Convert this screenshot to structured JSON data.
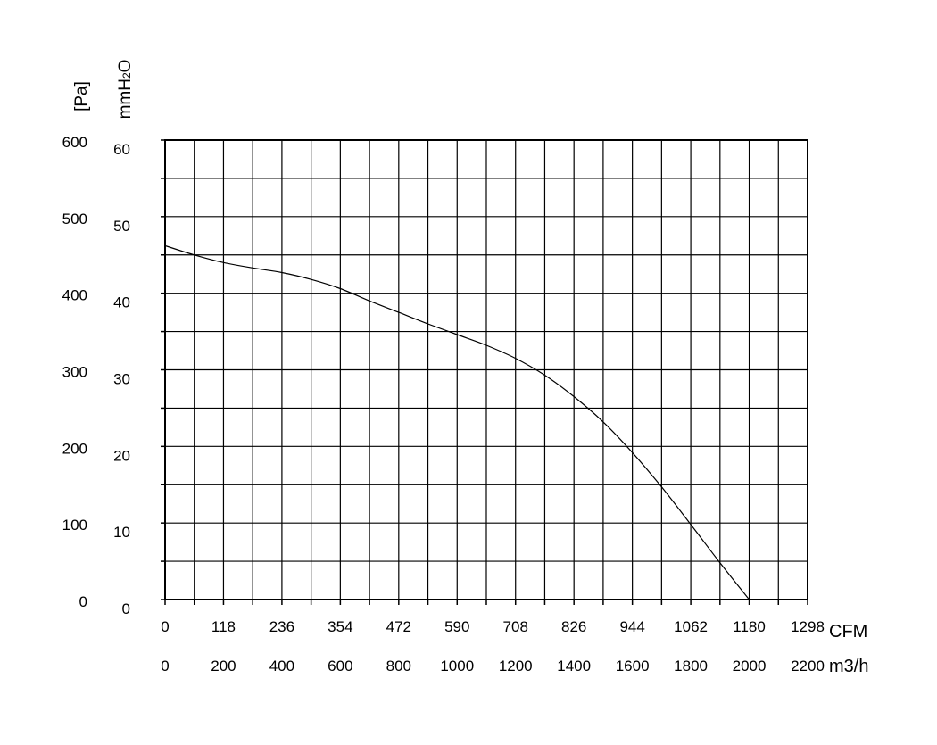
{
  "chart_data": {
    "type": "line",
    "title": "",
    "axes": {
      "y_left_outer": {
        "label": "[Pa]",
        "ticks": [
          "0",
          "100",
          "200",
          "300",
          "400",
          "500",
          "600"
        ],
        "range": [
          0,
          600
        ]
      },
      "y_left_inner": {
        "label": "mmH2O",
        "label_parts": [
          "mmH",
          "2",
          "O"
        ],
        "ticks": [
          "0",
          "10",
          "20",
          "30",
          "40",
          "50",
          "60"
        ],
        "range": [
          0,
          60
        ]
      },
      "x_primary": {
        "label": "CFM",
        "ticks": [
          "0",
          "118",
          "236",
          "354",
          "472",
          "590",
          "708",
          "826",
          "944",
          "1062",
          "1180",
          "1298"
        ],
        "range": [
          0,
          1298
        ]
      },
      "x_secondary": {
        "label": "m3/h",
        "ticks": [
          "0",
          "200",
          "400",
          "600",
          "800",
          "1000",
          "1200",
          "1400",
          "1600",
          "1800",
          "2000",
          "2200"
        ],
        "range": [
          0,
          2200
        ]
      }
    },
    "grid": true,
    "series": [
      {
        "color": "#000000",
        "x_unit": "m3/h",
        "y_unit": "Pa",
        "points": [
          {
            "x": 0,
            "y": 462
          },
          {
            "x": 100,
            "y": 450
          },
          {
            "x": 200,
            "y": 440
          },
          {
            "x": 300,
            "y": 433
          },
          {
            "x": 400,
            "y": 427
          },
          {
            "x": 500,
            "y": 418
          },
          {
            "x": 600,
            "y": 406
          },
          {
            "x": 700,
            "y": 390
          },
          {
            "x": 800,
            "y": 375
          },
          {
            "x": 900,
            "y": 360
          },
          {
            "x": 1000,
            "y": 346
          },
          {
            "x": 1100,
            "y": 332
          },
          {
            "x": 1200,
            "y": 315
          },
          {
            "x": 1300,
            "y": 293
          },
          {
            "x": 1400,
            "y": 265
          },
          {
            "x": 1500,
            "y": 232
          },
          {
            "x": 1600,
            "y": 192
          },
          {
            "x": 1700,
            "y": 147
          },
          {
            "x": 1800,
            "y": 98
          },
          {
            "x": 1900,
            "y": 48
          },
          {
            "x": 2000,
            "y": 0
          }
        ]
      }
    ]
  }
}
